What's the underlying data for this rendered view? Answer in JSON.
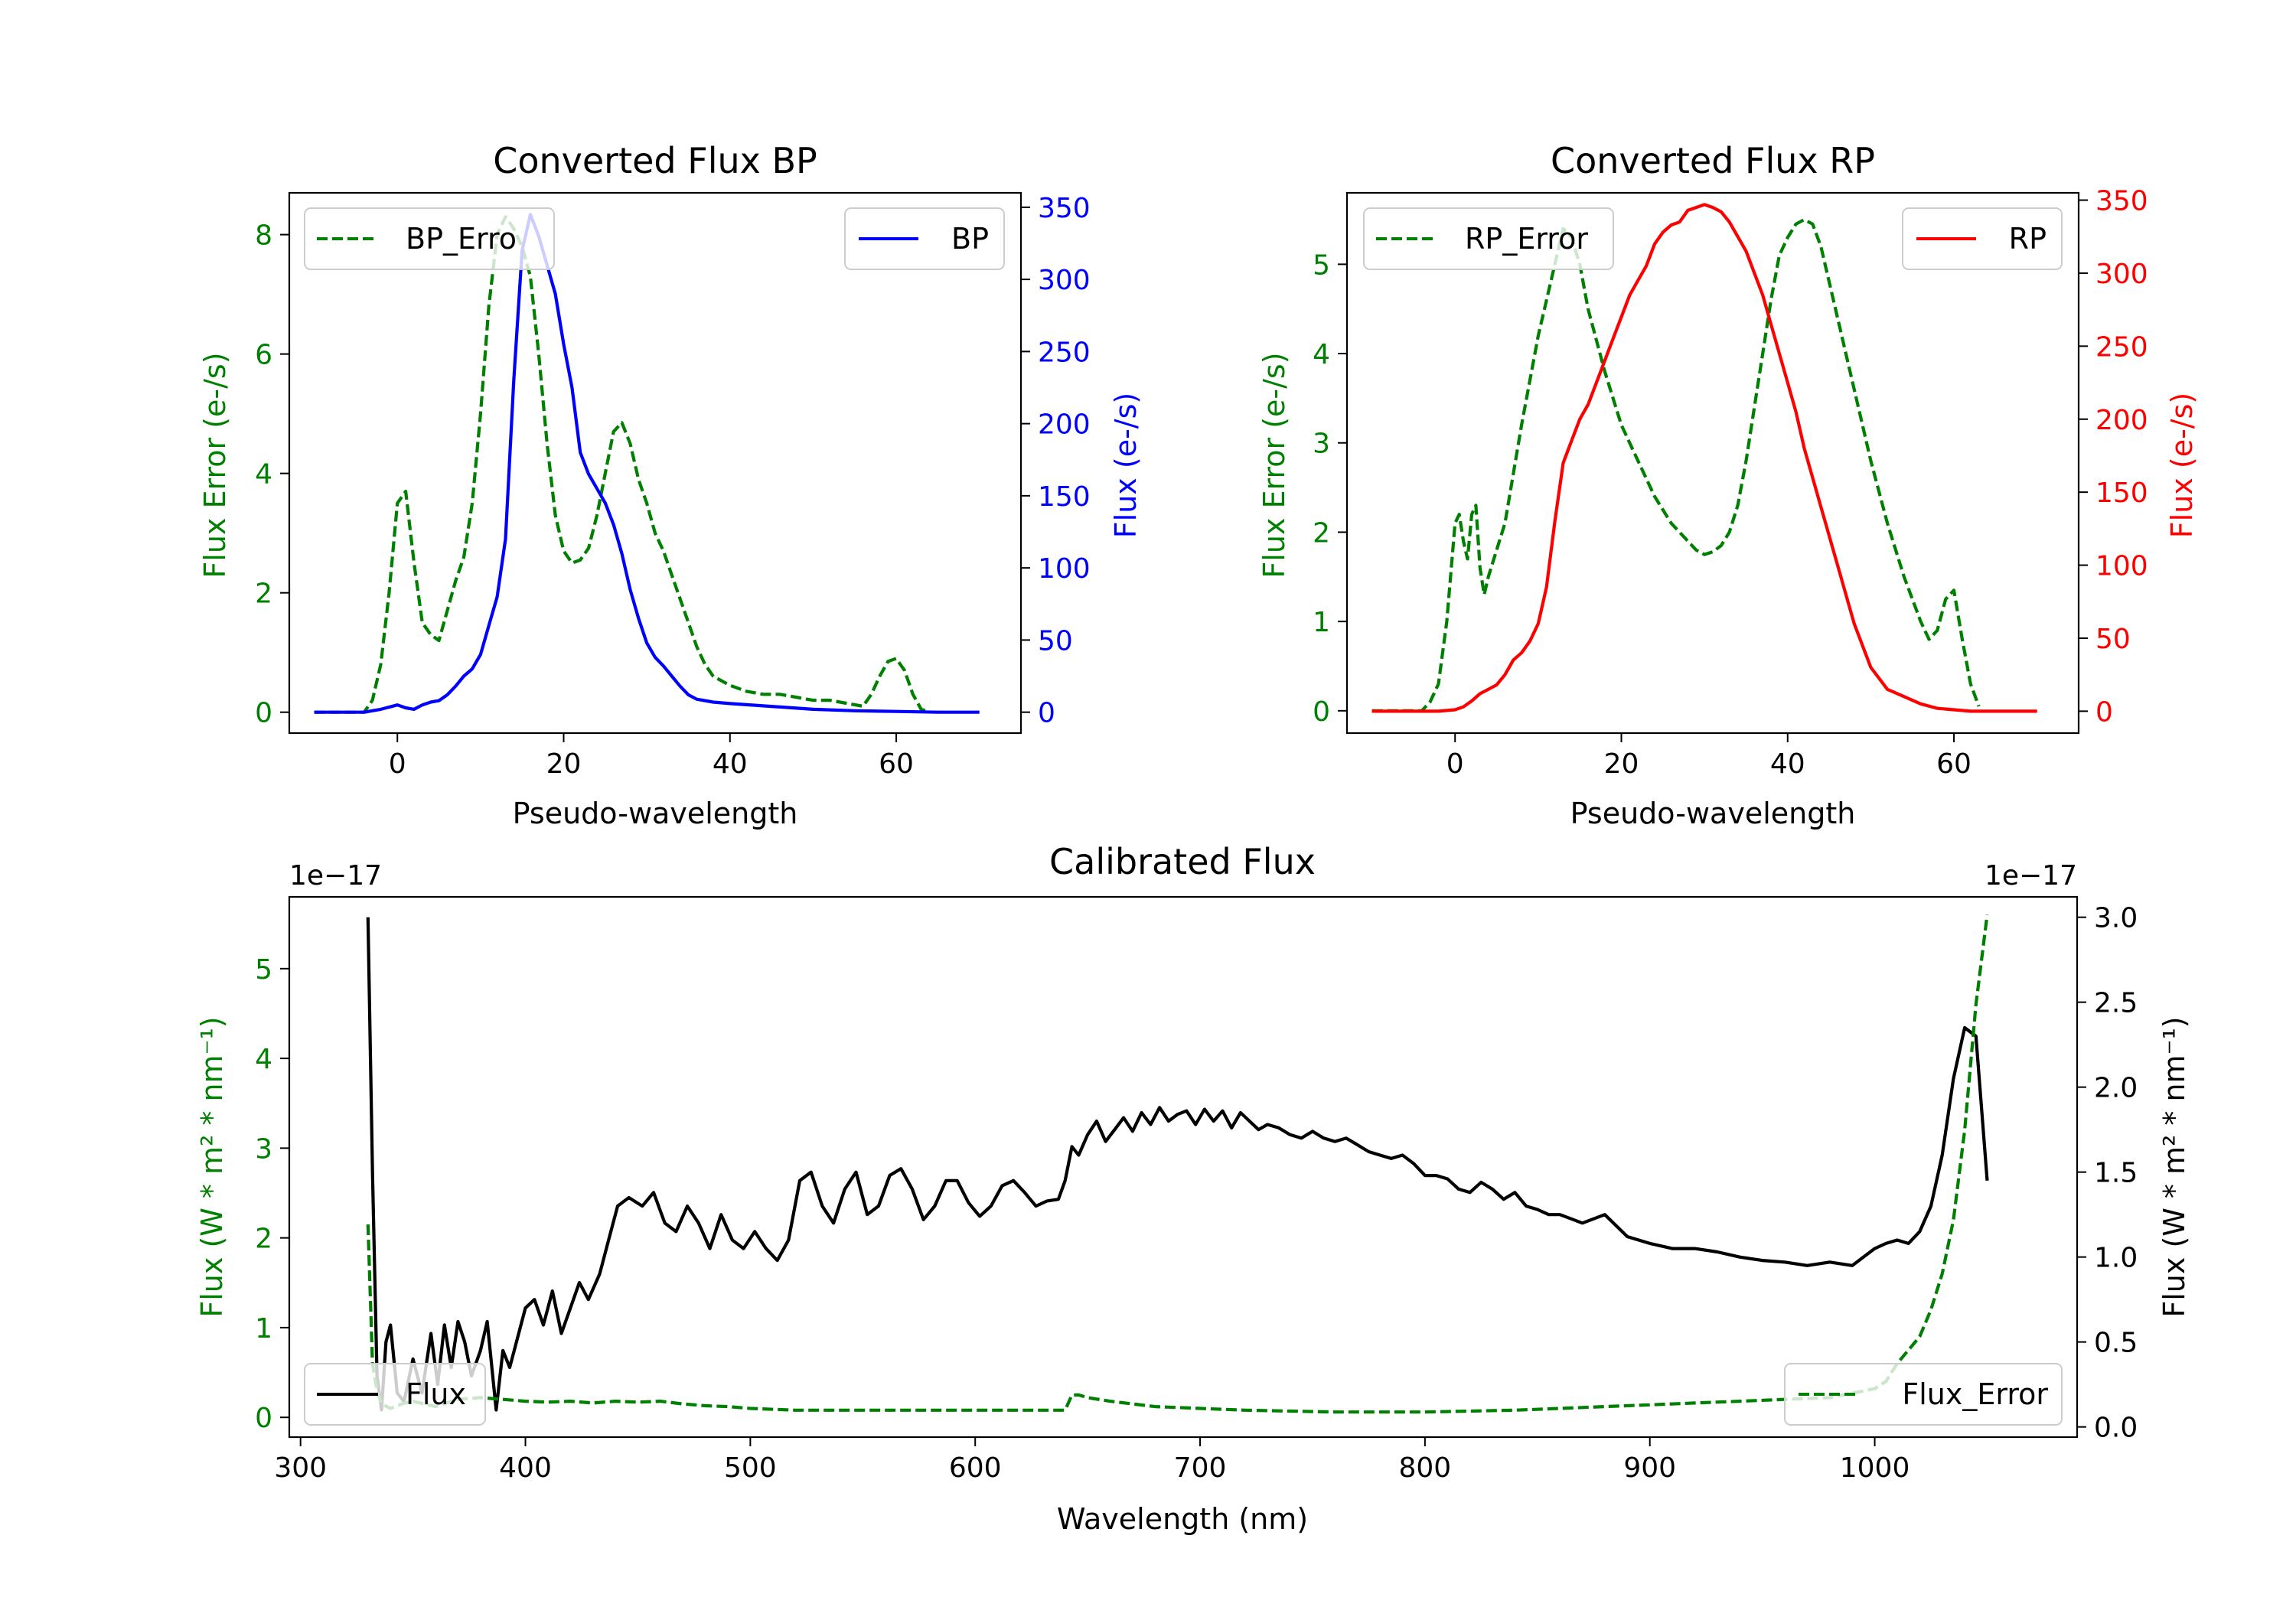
{
  "chart_data": [
    {
      "type": "line",
      "title": "Converted Flux BP",
      "xlabel": "Pseudo-wavelength",
      "ylabel_left": "Flux Error (e-/s)",
      "ylabel_right": "Flux (e-/s)",
      "xlim": [
        -13,
        75
      ],
      "ylim_left": [
        -0.35,
        8.7
      ],
      "ylim_right": [
        -14.5,
        360
      ],
      "xticks": [
        "0",
        "20",
        "40",
        "60"
      ],
      "yticks_left": [
        "0",
        "2",
        "4",
        "6",
        "8"
      ],
      "yticks_right": [
        "0",
        "50",
        "100",
        "150",
        "200",
        "250",
        "300",
        "350"
      ],
      "legend": {
        "left_label": "BP_Erro",
        "right_label": "BP"
      },
      "series": [
        {
          "name": "BP_Error",
          "axis": "left",
          "color": "#008000",
          "style": "dashed",
          "x": [
            -10,
            -4,
            -3,
            -2,
            -1,
            0,
            1,
            2,
            3,
            4,
            5,
            6,
            7,
            8,
            9,
            10,
            11,
            12,
            13,
            14,
            15,
            16,
            17,
            18,
            19,
            20,
            21,
            22,
            23,
            24,
            25,
            26,
            27,
            28,
            29,
            30,
            31,
            32,
            33,
            34,
            35,
            36,
            37,
            38,
            40,
            42,
            44,
            46,
            48,
            50,
            52,
            54,
            56,
            57,
            58,
            59,
            60,
            61,
            62,
            63,
            64
          ],
          "y": [
            0,
            0,
            0.2,
            0.8,
            2,
            3.5,
            3.7,
            2.5,
            1.5,
            1.3,
            1.2,
            1.7,
            2.2,
            2.6,
            3.5,
            5,
            6.8,
            8.0,
            8.3,
            8.1,
            7.8,
            7.3,
            6.0,
            4.5,
            3.3,
            2.7,
            2.5,
            2.55,
            2.75,
            3.3,
            4.0,
            4.7,
            4.85,
            4.5,
            3.9,
            3.5,
            3.0,
            2.7,
            2.3,
            1.9,
            1.5,
            1.1,
            0.8,
            0.6,
            0.45,
            0.35,
            0.3,
            0.3,
            0.25,
            0.2,
            0.2,
            0.15,
            0.1,
            0.3,
            0.6,
            0.85,
            0.9,
            0.7,
            0.3,
            0.05,
            0
          ]
        },
        {
          "name": "BP",
          "axis": "right",
          "color": "#0000ff",
          "style": "solid",
          "x": [
            -10,
            -4,
            -2,
            0,
            1,
            2,
            3,
            4,
            5,
            6,
            7,
            8,
            9,
            10,
            11,
            12,
            13,
            14,
            15,
            16,
            17,
            18,
            19,
            20,
            21,
            22,
            23,
            24,
            25,
            26,
            27,
            28,
            29,
            30,
            31,
            32,
            33,
            34,
            35,
            36,
            38,
            40,
            45,
            50,
            55,
            60,
            65,
            70
          ],
          "y": [
            0,
            0,
            2,
            5,
            3,
            2,
            5,
            7,
            8,
            12,
            18,
            25,
            30,
            40,
            60,
            80,
            120,
            230,
            320,
            345,
            330,
            310,
            290,
            255,
            225,
            180,
            165,
            155,
            145,
            130,
            110,
            85,
            65,
            48,
            38,
            32,
            25,
            18,
            12,
            9,
            7,
            6,
            4,
            2,
            1,
            0.5,
            0,
            0
          ]
        }
      ]
    },
    {
      "type": "line",
      "title": "Converted Flux RP",
      "xlabel": "Pseudo-wavelength",
      "ylabel_left": "Flux Error (e-/s)",
      "ylabel_right": "Flux (e-/s)",
      "xlim": [
        -13,
        75
      ],
      "ylim_left": [
        -0.25,
        5.8
      ],
      "ylim_right": [
        -15,
        355
      ],
      "xticks": [
        "0",
        "20",
        "40",
        "60"
      ],
      "yticks_left": [
        "0",
        "1",
        "2",
        "3",
        "4",
        "5"
      ],
      "yticks_right": [
        "0",
        "50",
        "100",
        "150",
        "200",
        "250",
        "300",
        "350"
      ],
      "legend": {
        "left_label": "RP_Error",
        "right_label": "RP"
      },
      "series": [
        {
          "name": "RP_Error",
          "axis": "left",
          "color": "#008000",
          "style": "dashed",
          "x": [
            -10,
            -4,
            -3,
            -2,
            -1,
            0,
            0.5,
            1,
            1.5,
            2,
            2.5,
            3,
            3.5,
            4,
            5,
            6,
            8,
            10,
            12,
            13,
            14,
            15,
            16,
            18,
            20,
            22,
            24,
            26,
            28,
            29,
            30,
            31,
            32,
            33,
            34,
            35,
            36,
            37,
            38,
            39,
            40,
            41,
            42,
            43,
            44,
            46,
            48,
            50,
            52,
            54,
            56,
            57,
            58,
            59,
            60,
            61,
            62,
            63
          ],
          "y": [
            0,
            0,
            0.1,
            0.3,
            1,
            2.1,
            2.2,
            1.9,
            1.7,
            2.2,
            2.3,
            1.6,
            1.3,
            1.5,
            1.8,
            2.1,
            3.2,
            4.2,
            5.0,
            5.4,
            5.3,
            5.0,
            4.5,
            3.8,
            3.2,
            2.8,
            2.4,
            2.1,
            1.9,
            1.8,
            1.75,
            1.78,
            1.85,
            2.0,
            2.3,
            2.8,
            3.4,
            4.0,
            4.6,
            5.1,
            5.3,
            5.45,
            5.5,
            5.45,
            5.2,
            4.4,
            3.6,
            2.8,
            2.1,
            1.5,
            1.0,
            0.8,
            0.9,
            1.25,
            1.35,
            0.8,
            0.3,
            0.05
          ]
        },
        {
          "name": "RP",
          "axis": "right",
          "color": "#ff0000",
          "style": "solid",
          "x": [
            -10,
            -2,
            0,
            1,
            2,
            3,
            4,
            5,
            6,
            7,
            8,
            9,
            10,
            11,
            12,
            13,
            14,
            15,
            16,
            17,
            18,
            19,
            20,
            21,
            22,
            23,
            24,
            25,
            26,
            27,
            28,
            29,
            30,
            31,
            32,
            33,
            34,
            35,
            36,
            37,
            38,
            39,
            40,
            41,
            42,
            44,
            46,
            48,
            50,
            52,
            54,
            56,
            58,
            60,
            62,
            65,
            70
          ],
          "y": [
            0,
            0,
            1,
            3,
            7,
            12,
            15,
            18,
            25,
            35,
            40,
            48,
            60,
            85,
            130,
            170,
            185,
            200,
            210,
            225,
            240,
            255,
            270,
            285,
            295,
            305,
            320,
            328,
            333,
            335,
            343,
            345,
            347,
            345,
            342,
            335,
            325,
            315,
            300,
            285,
            265,
            245,
            225,
            205,
            180,
            140,
            100,
            60,
            30,
            15,
            10,
            5,
            2,
            1,
            0,
            0,
            0
          ]
        }
      ]
    },
    {
      "type": "line",
      "title": "Calibrated Flux",
      "xlabel": "Wavelength (nm)",
      "ylabel_left": "Flux (W * m² * nm⁻¹)",
      "ylabel_right": "Flux (W * m² * nm⁻¹)",
      "offset_left": "1e−17",
      "offset_right": "1e−17",
      "xlim": [
        295,
        1090
      ],
      "ylim_left": [
        -0.22,
        5.8
      ],
      "ylim_right": [
        -0.06,
        3.12
      ],
      "xticks": [
        "300",
        "400",
        "500",
        "600",
        "700",
        "800",
        "900",
        "1000"
      ],
      "yticks_left": [
        "0",
        "1",
        "2",
        "3",
        "4",
        "5"
      ],
      "yticks_right": [
        "0.0",
        "0.5",
        "1.0",
        "1.5",
        "2.0",
        "2.5",
        "3.0"
      ],
      "legend": {
        "left_label": "Flux",
        "right_label": "Flux_Error"
      },
      "series": [
        {
          "name": "Flux",
          "axis": "right",
          "color": "#000000",
          "style": "solid",
          "x": [
            330,
            332,
            334,
            336,
            338,
            340,
            343,
            346,
            350,
            354,
            358,
            361,
            364,
            367,
            370,
            373,
            376,
            380,
            383,
            387,
            390,
            393,
            396,
            400,
            404,
            408,
            412,
            416,
            420,
            424,
            428,
            433,
            437,
            441,
            446,
            452,
            457,
            462,
            467,
            472,
            477,
            482,
            487,
            492,
            497,
            502,
            507,
            512,
            517,
            522,
            527,
            532,
            537,
            542,
            547,
            552,
            557,
            562,
            567,
            572,
            577,
            582,
            587,
            592,
            597,
            602,
            607,
            612,
            617,
            622,
            627,
            632,
            637,
            640,
            643,
            646,
            650,
            654,
            658,
            662,
            666,
            670,
            674,
            678,
            682,
            686,
            690,
            694,
            698,
            702,
            706,
            710,
            714,
            718,
            722,
            726,
            730,
            735,
            740,
            745,
            750,
            755,
            760,
            765,
            770,
            775,
            780,
            785,
            790,
            795,
            800,
            805,
            810,
            815,
            820,
            825,
            830,
            835,
            840,
            845,
            850,
            855,
            860,
            870,
            880,
            890,
            900,
            910,
            920,
            930,
            940,
            950,
            960,
            970,
            980,
            990,
            1000,
            1005,
            1010,
            1015,
            1020,
            1025,
            1030,
            1035,
            1040,
            1045,
            1050
          ],
          "y": [
            3.0,
            1.5,
            0.3,
            0.1,
            0.5,
            0.6,
            0.2,
            0.15,
            0.4,
            0.2,
            0.55,
            0.25,
            0.6,
            0.35,
            0.62,
            0.5,
            0.3,
            0.45,
            0.62,
            0.1,
            0.45,
            0.35,
            0.5,
            0.7,
            0.75,
            0.6,
            0.8,
            0.55,
            0.7,
            0.85,
            0.75,
            0.9,
            1.1,
            1.3,
            1.35,
            1.3,
            1.38,
            1.2,
            1.15,
            1.3,
            1.2,
            1.05,
            1.25,
            1.1,
            1.05,
            1.15,
            1.05,
            0.98,
            1.1,
            1.45,
            1.5,
            1.3,
            1.2,
            1.4,
            1.5,
            1.25,
            1.3,
            1.48,
            1.52,
            1.4,
            1.22,
            1.3,
            1.45,
            1.45,
            1.32,
            1.24,
            1.3,
            1.42,
            1.45,
            1.38,
            1.3,
            1.33,
            1.34,
            1.45,
            1.65,
            1.6,
            1.72,
            1.8,
            1.68,
            1.75,
            1.82,
            1.74,
            1.85,
            1.78,
            1.88,
            1.8,
            1.84,
            1.86,
            1.78,
            1.87,
            1.8,
            1.86,
            1.76,
            1.85,
            1.8,
            1.75,
            1.78,
            1.76,
            1.72,
            1.7,
            1.74,
            1.7,
            1.68,
            1.7,
            1.66,
            1.62,
            1.6,
            1.58,
            1.6,
            1.55,
            1.48,
            1.48,
            1.46,
            1.4,
            1.38,
            1.44,
            1.4,
            1.34,
            1.38,
            1.3,
            1.28,
            1.25,
            1.25,
            1.2,
            1.25,
            1.12,
            1.08,
            1.05,
            1.05,
            1.03,
            1.0,
            0.98,
            0.97,
            0.95,
            0.97,
            0.95,
            1.05,
            1.08,
            1.1,
            1.08,
            1.15,
            1.3,
            1.6,
            2.05,
            2.35,
            2.3,
            1.45
          ]
        },
        {
          "name": "Flux_Error",
          "axis": "left",
          "color": "#008000",
          "style": "dashed",
          "x": [
            330,
            332,
            334,
            336,
            340,
            345,
            350,
            360,
            370,
            380,
            390,
            400,
            410,
            420,
            430,
            440,
            450,
            460,
            470,
            480,
            490,
            500,
            520,
            540,
            560,
            580,
            600,
            620,
            630,
            640,
            643,
            646,
            650,
            660,
            680,
            700,
            720,
            740,
            760,
            780,
            800,
            820,
            840,
            860,
            880,
            900,
            920,
            940,
            960,
            980,
            1000,
            1005,
            1010,
            1020,
            1025,
            1030,
            1035,
            1040,
            1045,
            1050
          ],
          "y": [
            2.15,
            0.6,
            0.3,
            0.15,
            0.1,
            0.15,
            0.18,
            0.12,
            0.2,
            0.22,
            0.2,
            0.18,
            0.17,
            0.18,
            0.16,
            0.18,
            0.17,
            0.18,
            0.15,
            0.13,
            0.12,
            0.1,
            0.08,
            0.08,
            0.08,
            0.08,
            0.08,
            0.08,
            0.08,
            0.08,
            0.25,
            0.25,
            0.22,
            0.18,
            0.12,
            0.1,
            0.08,
            0.07,
            0.06,
            0.06,
            0.06,
            0.07,
            0.08,
            0.1,
            0.12,
            0.14,
            0.16,
            0.18,
            0.2,
            0.22,
            0.32,
            0.4,
            0.6,
            0.9,
            1.2,
            1.6,
            2.2,
            3.2,
            4.6,
            5.6
          ]
        }
      ]
    }
  ]
}
